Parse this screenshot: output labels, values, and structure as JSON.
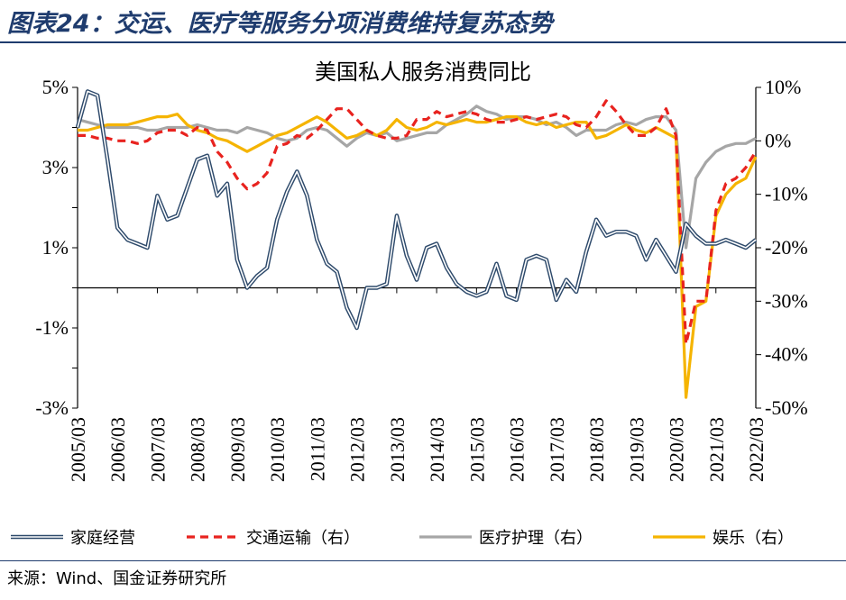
{
  "figure_title": "图表24：交运、医疗等服务分项消费维持复苏态势",
  "source": "来源：Wind、国金证券研究所",
  "chart_data": {
    "type": "line",
    "title": "美国私人服务消费同比",
    "left_axis": {
      "min": -3,
      "max": 5,
      "ticks": [
        "5%",
        "3%",
        "1%",
        "-1%",
        "-3%"
      ],
      "tick_values": [
        5,
        3,
        1,
        -1,
        -3
      ]
    },
    "right_axis": {
      "min": -50,
      "max": 10,
      "ticks": [
        "10%",
        "0%",
        "-10%",
        "-20%",
        "-30%",
        "-40%",
        "-50%"
      ],
      "tick_values": [
        10,
        0,
        -10,
        -20,
        -30,
        -40,
        -50
      ]
    },
    "x_start": "2005-03",
    "x_end": "2022-03",
    "x_ticks": [
      "2005/03",
      "2006/03",
      "2007/03",
      "2008/03",
      "2009/03",
      "2010/03",
      "2011/03",
      "2012/03",
      "2013/03",
      "2014/03",
      "2015/03",
      "2016/03",
      "2017/03",
      "2018/03",
      "2019/03",
      "2020/03",
      "2021/03",
      "2022/03"
    ],
    "grid": false,
    "legend_position": "bottom",
    "series": [
      {
        "name": "家庭经营",
        "axis": "left",
        "color": "#2e4a6b",
        "style": "double",
        "points": [
          [
            "2005-03",
            4.0
          ],
          [
            "2005-06",
            4.9
          ],
          [
            "2005-09",
            4.8
          ],
          [
            "2005-12",
            3.2
          ],
          [
            "2006-03",
            1.5
          ],
          [
            "2006-06",
            1.2
          ],
          [
            "2006-09",
            1.1
          ],
          [
            "2006-12",
            1.0
          ],
          [
            "2007-03",
            2.3
          ],
          [
            "2007-06",
            1.7
          ],
          [
            "2007-09",
            1.8
          ],
          [
            "2007-12",
            2.5
          ],
          [
            "2008-03",
            3.2
          ],
          [
            "2008-06",
            3.3
          ],
          [
            "2008-09",
            2.3
          ],
          [
            "2008-12",
            2.6
          ],
          [
            "2009-03",
            0.7
          ],
          [
            "2009-06",
            0.0
          ],
          [
            "2009-09",
            0.3
          ],
          [
            "2009-12",
            0.5
          ],
          [
            "2010-03",
            1.7
          ],
          [
            "2010-06",
            2.4
          ],
          [
            "2010-09",
            2.9
          ],
          [
            "2010-12",
            2.3
          ],
          [
            "2011-03",
            1.2
          ],
          [
            "2011-06",
            0.6
          ],
          [
            "2011-09",
            0.4
          ],
          [
            "2011-12",
            -0.5
          ],
          [
            "2012-03",
            -1.0
          ],
          [
            "2012-06",
            0.0
          ],
          [
            "2012-09",
            0.0
          ],
          [
            "2012-12",
            0.1
          ],
          [
            "2013-03",
            1.8
          ],
          [
            "2013-06",
            0.8
          ],
          [
            "2013-09",
            0.2
          ],
          [
            "2013-12",
            1.0
          ],
          [
            "2014-03",
            1.1
          ],
          [
            "2014-06",
            0.5
          ],
          [
            "2014-09",
            0.1
          ],
          [
            "2014-12",
            -0.1
          ],
          [
            "2015-03",
            -0.2
          ],
          [
            "2015-06",
            -0.1
          ],
          [
            "2015-09",
            0.6
          ],
          [
            "2015-12",
            -0.2
          ],
          [
            "2016-03",
            -0.3
          ],
          [
            "2016-06",
            0.7
          ],
          [
            "2016-09",
            0.8
          ],
          [
            "2016-12",
            0.7
          ],
          [
            "2017-03",
            -0.3
          ],
          [
            "2017-06",
            0.2
          ],
          [
            "2017-09",
            -0.1
          ],
          [
            "2017-12",
            0.9
          ],
          [
            "2018-03",
            1.7
          ],
          [
            "2018-06",
            1.3
          ],
          [
            "2018-09",
            1.4
          ],
          [
            "2018-12",
            1.4
          ],
          [
            "2019-03",
            1.3
          ],
          [
            "2019-06",
            0.7
          ],
          [
            "2019-09",
            1.2
          ],
          [
            "2019-12",
            0.8
          ],
          [
            "2020-03",
            0.4
          ],
          [
            "2020-06",
            1.6
          ],
          [
            "2020-09",
            1.3
          ],
          [
            "2020-12",
            1.1
          ],
          [
            "2021-03",
            1.1
          ],
          [
            "2021-06",
            1.2
          ],
          [
            "2021-09",
            1.1
          ],
          [
            "2021-12",
            1.0
          ],
          [
            "2022-03",
            1.2
          ]
        ]
      },
      {
        "name": "交通运输（右）",
        "axis": "right",
        "color": "#e8231f",
        "style": "dashed",
        "points": [
          [
            "2005-03",
            1.0
          ],
          [
            "2005-06",
            1.0
          ],
          [
            "2005-09",
            0.5
          ],
          [
            "2005-12",
            0.5
          ],
          [
            "2006-03",
            0.0
          ],
          [
            "2006-06",
            0.0
          ],
          [
            "2006-09",
            -0.5
          ],
          [
            "2006-12",
            0.0
          ],
          [
            "2007-03",
            1.5
          ],
          [
            "2007-06",
            2.0
          ],
          [
            "2007-09",
            2.0
          ],
          [
            "2007-12",
            1.0
          ],
          [
            "2008-03",
            2.5
          ],
          [
            "2008-06",
            2.0
          ],
          [
            "2008-09",
            -2.0
          ],
          [
            "2008-12",
            -4.0
          ],
          [
            "2009-03",
            -7.0
          ],
          [
            "2009-06",
            -9.0
          ],
          [
            "2009-09",
            -8.0
          ],
          [
            "2009-12",
            -6.0
          ],
          [
            "2010-03",
            -1.0
          ],
          [
            "2010-06",
            -0.5
          ],
          [
            "2010-09",
            1.0
          ],
          [
            "2010-12",
            0.5
          ],
          [
            "2011-03",
            2.0
          ],
          [
            "2011-06",
            4.0
          ],
          [
            "2011-09",
            6.0
          ],
          [
            "2011-12",
            6.0
          ],
          [
            "2012-03",
            4.0
          ],
          [
            "2012-06",
            2.0
          ],
          [
            "2012-09",
            1.0
          ],
          [
            "2012-12",
            0.5
          ],
          [
            "2013-03",
            0.5
          ],
          [
            "2013-06",
            1.0
          ],
          [
            "2013-09",
            4.0
          ],
          [
            "2013-12",
            4.0
          ],
          [
            "2014-03",
            5.5
          ],
          [
            "2014-06",
            4.5
          ],
          [
            "2014-09",
            5.0
          ],
          [
            "2014-12",
            5.5
          ],
          [
            "2015-03",
            5.0
          ],
          [
            "2015-06",
            4.0
          ],
          [
            "2015-09",
            3.5
          ],
          [
            "2015-12",
            3.5
          ],
          [
            "2016-03",
            4.0
          ],
          [
            "2016-06",
            4.5
          ],
          [
            "2016-09",
            4.0
          ],
          [
            "2016-12",
            4.5
          ],
          [
            "2017-03",
            5.0
          ],
          [
            "2017-06",
            4.5
          ],
          [
            "2017-09",
            3.0
          ],
          [
            "2017-12",
            2.5
          ],
          [
            "2018-03",
            4.5
          ],
          [
            "2018-06",
            7.5
          ],
          [
            "2018-09",
            5.5
          ],
          [
            "2018-12",
            3.0
          ],
          [
            "2019-03",
            1.0
          ],
          [
            "2019-06",
            1.0
          ],
          [
            "2019-09",
            2.5
          ],
          [
            "2019-12",
            6.0
          ],
          [
            "2020-03",
            1.0
          ],
          [
            "2020-06",
            -38.0
          ],
          [
            "2020-09",
            -30.0
          ],
          [
            "2020-12",
            -30.0
          ],
          [
            "2021-03",
            -13.0
          ],
          [
            "2021-06",
            -8.0
          ],
          [
            "2021-09",
            -7.0
          ],
          [
            "2021-12",
            -5.0
          ],
          [
            "2022-03",
            -2.0
          ]
        ]
      },
      {
        "name": "医疗护理（右）",
        "axis": "right",
        "color": "#a6a6a6",
        "style": "solid",
        "points": [
          [
            "2005-03",
            4.0
          ],
          [
            "2005-06",
            3.5
          ],
          [
            "2005-09",
            3.0
          ],
          [
            "2005-12",
            2.5
          ],
          [
            "2006-03",
            2.5
          ],
          [
            "2006-06",
            2.5
          ],
          [
            "2006-09",
            2.5
          ],
          [
            "2006-12",
            2.0
          ],
          [
            "2007-03",
            2.0
          ],
          [
            "2007-06",
            2.5
          ],
          [
            "2007-09",
            2.5
          ],
          [
            "2007-12",
            2.5
          ],
          [
            "2008-03",
            3.0
          ],
          [
            "2008-06",
            2.5
          ],
          [
            "2008-09",
            2.0
          ],
          [
            "2008-12",
            2.0
          ],
          [
            "2009-03",
            1.5
          ],
          [
            "2009-06",
            2.5
          ],
          [
            "2009-09",
            2.0
          ],
          [
            "2009-12",
            1.5
          ],
          [
            "2010-03",
            0.5
          ],
          [
            "2010-06",
            0.0
          ],
          [
            "2010-09",
            0.5
          ],
          [
            "2010-12",
            2.0
          ],
          [
            "2011-03",
            2.5
          ],
          [
            "2011-06",
            2.0
          ],
          [
            "2011-09",
            0.5
          ],
          [
            "2011-12",
            -1.0
          ],
          [
            "2012-03",
            0.5
          ],
          [
            "2012-06",
            1.5
          ],
          [
            "2012-09",
            1.0
          ],
          [
            "2012-12",
            1.5
          ],
          [
            "2013-03",
            0.0
          ],
          [
            "2013-06",
            0.5
          ],
          [
            "2013-09",
            1.0
          ],
          [
            "2013-12",
            1.5
          ],
          [
            "2014-03",
            1.5
          ],
          [
            "2014-06",
            3.0
          ],
          [
            "2014-09",
            4.0
          ],
          [
            "2014-12",
            5.0
          ],
          [
            "2015-03",
            6.5
          ],
          [
            "2015-06",
            5.5
          ],
          [
            "2015-09",
            5.0
          ],
          [
            "2015-12",
            4.0
          ],
          [
            "2016-03",
            4.5
          ],
          [
            "2016-06",
            4.5
          ],
          [
            "2016-09",
            4.0
          ],
          [
            "2016-12",
            3.0
          ],
          [
            "2017-03",
            3.5
          ],
          [
            "2017-06",
            2.5
          ],
          [
            "2017-09",
            1.0
          ],
          [
            "2017-12",
            2.0
          ],
          [
            "2018-03",
            2.0
          ],
          [
            "2018-06",
            2.0
          ],
          [
            "2018-09",
            3.0
          ],
          [
            "2018-12",
            3.5
          ],
          [
            "2019-03",
            3.0
          ],
          [
            "2019-06",
            4.0
          ],
          [
            "2019-09",
            4.5
          ],
          [
            "2019-12",
            4.5
          ],
          [
            "2020-03",
            2.0
          ],
          [
            "2020-06",
            -20.0
          ],
          [
            "2020-09",
            -7.0
          ],
          [
            "2020-12",
            -4.0
          ],
          [
            "2021-03",
            -2.0
          ],
          [
            "2021-06",
            -1.0
          ],
          [
            "2021-09",
            -0.5
          ],
          [
            "2021-12",
            -0.5
          ],
          [
            "2022-03",
            0.5
          ]
        ]
      },
      {
        "name": "娱乐（右）",
        "axis": "right",
        "color": "#f5b400",
        "style": "solid",
        "points": [
          [
            "2005-03",
            2.0
          ],
          [
            "2005-06",
            2.0
          ],
          [
            "2005-09",
            2.5
          ],
          [
            "2005-12",
            3.0
          ],
          [
            "2006-03",
            3.0
          ],
          [
            "2006-06",
            3.0
          ],
          [
            "2006-09",
            3.5
          ],
          [
            "2006-12",
            4.0
          ],
          [
            "2007-03",
            4.5
          ],
          [
            "2007-06",
            4.5
          ],
          [
            "2007-09",
            5.0
          ],
          [
            "2007-12",
            3.0
          ],
          [
            "2008-03",
            2.0
          ],
          [
            "2008-06",
            1.5
          ],
          [
            "2008-09",
            0.5
          ],
          [
            "2008-12",
            0.0
          ],
          [
            "2009-03",
            -1.0
          ],
          [
            "2009-06",
            -2.0
          ],
          [
            "2009-09",
            -1.0
          ],
          [
            "2009-12",
            0.0
          ],
          [
            "2010-03",
            1.0
          ],
          [
            "2010-06",
            1.5
          ],
          [
            "2010-09",
            2.5
          ],
          [
            "2010-12",
            3.5
          ],
          [
            "2011-03",
            4.5
          ],
          [
            "2011-06",
            3.5
          ],
          [
            "2011-09",
            2.0
          ],
          [
            "2011-12",
            0.5
          ],
          [
            "2012-03",
            1.0
          ],
          [
            "2012-06",
            2.0
          ],
          [
            "2012-09",
            1.0
          ],
          [
            "2012-12",
            2.0
          ],
          [
            "2013-03",
            4.0
          ],
          [
            "2013-06",
            2.5
          ],
          [
            "2013-09",
            2.0
          ],
          [
            "2013-12",
            2.5
          ],
          [
            "2014-03",
            3.5
          ],
          [
            "2014-06",
            3.0
          ],
          [
            "2014-09",
            3.5
          ],
          [
            "2014-12",
            4.0
          ],
          [
            "2015-03",
            3.5
          ],
          [
            "2015-06",
            3.5
          ],
          [
            "2015-09",
            4.0
          ],
          [
            "2015-12",
            4.5
          ],
          [
            "2016-03",
            4.5
          ],
          [
            "2016-06",
            3.5
          ],
          [
            "2016-09",
            3.0
          ],
          [
            "2016-12",
            3.5
          ],
          [
            "2017-03",
            2.5
          ],
          [
            "2017-06",
            3.0
          ],
          [
            "2017-09",
            3.5
          ],
          [
            "2017-12",
            3.5
          ],
          [
            "2018-03",
            0.5
          ],
          [
            "2018-06",
            1.0
          ],
          [
            "2018-09",
            2.0
          ],
          [
            "2018-12",
            3.0
          ],
          [
            "2019-03",
            2.0
          ],
          [
            "2019-06",
            1.5
          ],
          [
            "2019-09",
            2.5
          ],
          [
            "2019-12",
            1.5
          ],
          [
            "2020-03",
            0.5
          ],
          [
            "2020-06",
            -48.0
          ],
          [
            "2020-09",
            -31.0
          ],
          [
            "2020-12",
            -30.0
          ],
          [
            "2021-03",
            -14.0
          ],
          [
            "2021-06",
            -10.0
          ],
          [
            "2021-09",
            -8.0
          ],
          [
            "2021-12",
            -7.0
          ],
          [
            "2022-03",
            -3.0
          ]
        ]
      }
    ]
  }
}
